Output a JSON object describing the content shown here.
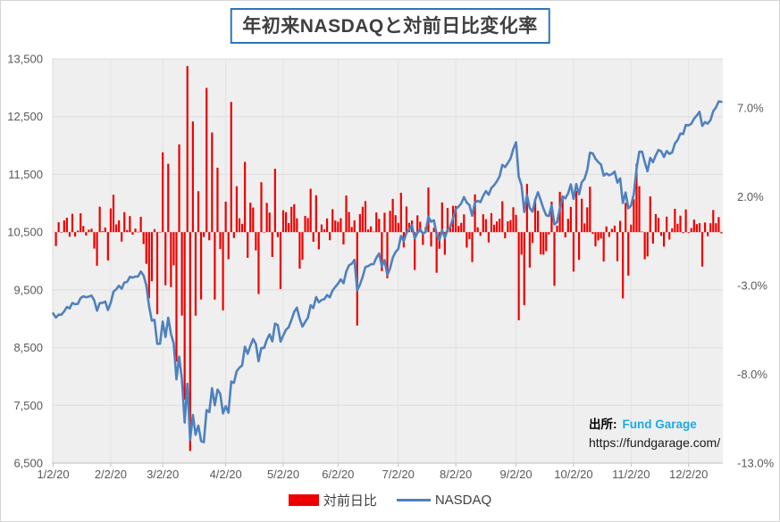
{
  "chart": {
    "title": "年初来NASDAQと対前日比変化率"
  },
  "legend": {
    "bar_label": "対前日比",
    "line_label": "NASDAQ"
  },
  "source": {
    "prefix": "出所:",
    "name": "Fund Garage",
    "url": "https://fundgarage.com/"
  },
  "colors": {
    "bar": "#ee0000",
    "line": "#4f81bd",
    "title_border": "#2e75b6",
    "source_name": "#1fa9e4",
    "plot_bg": "#efefef",
    "grid": "#dddddd",
    "axis_line": "#bfbfbf",
    "axis_text": "#595959"
  },
  "chart_data": {
    "type": "combo",
    "title": "年初来NASDAQと対前日比変化率",
    "series": [
      {
        "name": "対前日比",
        "type": "bar",
        "axis": "right",
        "color": "#ee0000",
        "note": "daily percent change computed from consecutive NASDAQ closes"
      },
      {
        "name": "NASDAQ",
        "type": "line",
        "axis": "left",
        "color": "#4f81bd"
      }
    ],
    "left_axis": {
      "min": 6500,
      "max": 13500,
      "step": 1000,
      "tick_labels": [
        "13,500",
        "12,500",
        "11,500",
        "10,500",
        "9,500",
        "8,500",
        "7,500",
        "6,500"
      ]
    },
    "right_axis": {
      "tick_labels": [
        "7.0%",
        "2.0%",
        "-3.0%",
        "-8.0%",
        "-13.0%"
      ],
      "tick_values": [
        7,
        2,
        -3,
        -8,
        -13
      ],
      "min": -13,
      "zero_aligned_at_left_value": 10500
    },
    "x_ticks": [
      {
        "label": "1/2/20",
        "date": "1/2"
      },
      {
        "label": "2/2/20",
        "date": "2/3"
      },
      {
        "label": "3/2/20",
        "date": "3/2"
      },
      {
        "label": "4/2/20",
        "date": "4/2"
      },
      {
        "label": "5/2/20",
        "date": "5/4"
      },
      {
        "label": "6/2/20",
        "date": "6/2"
      },
      {
        "label": "7/2/20",
        "date": "7/2"
      },
      {
        "label": "8/2/20",
        "date": "8/3"
      },
      {
        "label": "9/2/20",
        "date": "9/2"
      },
      {
        "label": "10/2/20",
        "date": "10/2"
      },
      {
        "label": "11/2/20",
        "date": "11/2"
      },
      {
        "label": "12/2/20",
        "date": "12/2"
      }
    ],
    "dates": [
      "1/2",
      "1/3",
      "1/6",
      "1/7",
      "1/8",
      "1/9",
      "1/10",
      "1/13",
      "1/14",
      "1/15",
      "1/16",
      "1/17",
      "1/21",
      "1/22",
      "1/23",
      "1/24",
      "1/27",
      "1/28",
      "1/29",
      "1/30",
      "1/31",
      "2/3",
      "2/4",
      "2/5",
      "2/6",
      "2/7",
      "2/10",
      "2/11",
      "2/12",
      "2/13",
      "2/14",
      "2/18",
      "2/19",
      "2/20",
      "2/21",
      "2/24",
      "2/25",
      "2/26",
      "2/27",
      "2/28",
      "3/2",
      "3/3",
      "3/4",
      "3/5",
      "3/6",
      "3/9",
      "3/10",
      "3/11",
      "3/12",
      "3/13",
      "3/16",
      "3/17",
      "3/18",
      "3/19",
      "3/20",
      "3/23",
      "3/24",
      "3/25",
      "3/26",
      "3/27",
      "3/30",
      "3/31",
      "4/1",
      "4/2",
      "4/3",
      "4/6",
      "4/7",
      "4/8",
      "4/9",
      "4/13",
      "4/14",
      "4/15",
      "4/16",
      "4/17",
      "4/20",
      "4/21",
      "4/22",
      "4/23",
      "4/24",
      "4/27",
      "4/28",
      "4/29",
      "4/30",
      "5/1",
      "5/4",
      "5/5",
      "5/6",
      "5/7",
      "5/8",
      "5/11",
      "5/12",
      "5/13",
      "5/14",
      "5/15",
      "5/18",
      "5/19",
      "5/20",
      "5/21",
      "5/22",
      "5/26",
      "5/27",
      "5/28",
      "5/29",
      "6/1",
      "6/2",
      "6/3",
      "6/4",
      "6/5",
      "6/8",
      "6/9",
      "6/10",
      "6/11",
      "6/12",
      "6/15",
      "6/16",
      "6/17",
      "6/18",
      "6/19",
      "6/22",
      "6/23",
      "6/24",
      "6/25",
      "6/26",
      "6/29",
      "6/30",
      "7/1",
      "7/2",
      "7/6",
      "7/7",
      "7/8",
      "7/9",
      "7/10",
      "7/13",
      "7/14",
      "7/15",
      "7/16",
      "7/17",
      "7/20",
      "7/21",
      "7/22",
      "7/23",
      "7/24",
      "7/27",
      "7/28",
      "7/29",
      "7/30",
      "7/31",
      "8/3",
      "8/4",
      "8/5",
      "8/6",
      "8/7",
      "8/10",
      "8/11",
      "8/12",
      "8/13",
      "8/14",
      "8/17",
      "8/18",
      "8/19",
      "8/20",
      "8/21",
      "8/24",
      "8/25",
      "8/26",
      "8/27",
      "8/28",
      "8/31",
      "9/1",
      "9/2",
      "9/3",
      "9/4",
      "9/8",
      "9/9",
      "9/10",
      "9/11",
      "9/14",
      "9/15",
      "9/16",
      "9/17",
      "9/18",
      "9/21",
      "9/22",
      "9/23",
      "9/24",
      "9/25",
      "9/28",
      "9/29",
      "9/30",
      "10/1",
      "10/2",
      "10/5",
      "10/6",
      "10/7",
      "10/8",
      "10/9",
      "10/12",
      "10/13",
      "10/14",
      "10/15",
      "10/16",
      "10/19",
      "10/20",
      "10/21",
      "10/22",
      "10/23",
      "10/26",
      "10/27",
      "10/28",
      "10/29",
      "10/30",
      "11/2",
      "11/3",
      "11/4",
      "11/5",
      "11/6",
      "11/9",
      "11/10",
      "11/11",
      "11/12",
      "11/13",
      "11/16",
      "11/17",
      "11/18",
      "11/19",
      "11/20",
      "11/23",
      "11/24",
      "11/25",
      "11/27",
      "11/30",
      "12/1",
      "12/2",
      "12/3",
      "12/4",
      "12/7",
      "12/8",
      "12/9",
      "12/10",
      "12/11",
      "12/14",
      "12/15",
      "12/16",
      "12/17",
      "12/18"
    ],
    "nasdaq_close": [
      9092,
      9021,
      9071,
      9069,
      9129,
      9203,
      9179,
      9274,
      9251,
      9259,
      9357,
      9389,
      9371,
      9384,
      9402,
      9315,
      9139,
      9270,
      9275,
      9299,
      9151,
      9273,
      9468,
      9509,
      9572,
      9521,
      9628,
      9639,
      9726,
      9712,
      9731,
      9733,
      9817,
      9751,
      9577,
      9221,
      8966,
      8981,
      8566,
      8567,
      8952,
      8684,
      9018,
      8739,
      8576,
      7951,
      8344,
      7952,
      7202,
      7875,
      6905,
      7335,
      6990,
      7151,
      6880,
      6861,
      7418,
      7384,
      7798,
      7502,
      7774,
      7700,
      7361,
      7487,
      7373,
      7913,
      7887,
      8091,
      8154,
      8192,
      8516,
      8393,
      8532,
      8650,
      8561,
      8263,
      8495,
      8495,
      8635,
      8730,
      8608,
      8915,
      8890,
      8605,
      8711,
      8809,
      8854,
      8980,
      9121,
      9192,
      9003,
      8863,
      8944,
      9015,
      9235,
      9185,
      9376,
      9285,
      9325,
      9340,
      9412,
      9369,
      9490,
      9552,
      9608,
      9683,
      9616,
      9814,
      9925,
      9954,
      10020,
      9493,
      9589,
      9726,
      9896,
      9911,
      9943,
      9946,
      10056,
      10131,
      9909,
      10017,
      9757,
      9874,
      10059,
      10155,
      10208,
      10434,
      10344,
      10493,
      10548,
      10617,
      10391,
      10489,
      10550,
      10474,
      10503,
      10767,
      10680,
      10706,
      10461,
      10363,
      10536,
      10402,
      10543,
      10588,
      10745,
      10903,
      10941,
      10998,
      11108,
      11011,
      10968,
      10783,
      11012,
      11042,
      11019,
      11130,
      11211,
      11146,
      11265,
      11312,
      11380,
      11466,
      11665,
      11625,
      11696,
      11775,
      11940,
      12056,
      11458,
      11313,
      10848,
      11142,
      10920,
      10854,
      11057,
      11190,
      11050,
      10910,
      10793,
      10779,
      10964,
      10633,
      10672,
      10914,
      11118,
      11085,
      11168,
      11327,
      11075,
      11332,
      11155,
      11365,
      11421,
      11580,
      11876,
      11864,
      11769,
      11714,
      11672,
      11479,
      11516,
      11485,
      11506,
      11548,
      11359,
      11431,
      11005,
      11186,
      10912,
      10958,
      11161,
      11591,
      11891,
      11895,
      11714,
      11554,
      11786,
      11710,
      11829,
      11924,
      11899,
      11802,
      11905,
      11855,
      11881,
      12037,
      12094,
      12206,
      12199,
      12355,
      12349,
      12377,
      12464,
      12520,
      12583,
      12339,
      12406,
      12378,
      12440,
      12595,
      12658,
      12765,
      12756
    ]
  }
}
